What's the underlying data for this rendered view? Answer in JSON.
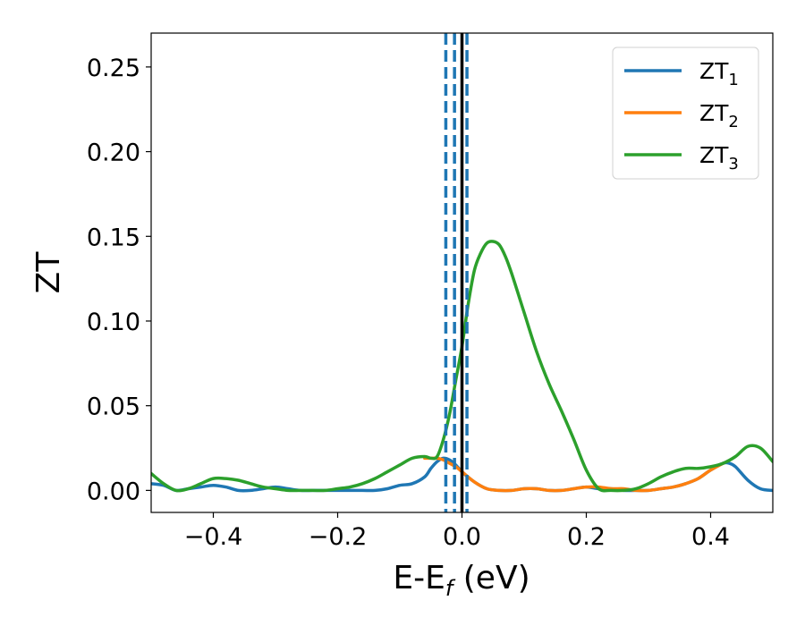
{
  "chart_data": {
    "type": "line",
    "title": "",
    "xlabel": "E-E_f (eV)",
    "xlabel_parts": {
      "base": "E-E",
      "sub": "f",
      "rest": " (eV)"
    },
    "ylabel": "ZT",
    "xlim": [
      -0.5,
      0.5
    ],
    "ylim": [
      -0.013,
      0.27
    ],
    "x_ticks": [
      -0.4,
      -0.2,
      0.0,
      0.2,
      0.4
    ],
    "x_tick_labels": [
      "−0.4",
      "−0.2",
      "0.0",
      "0.2",
      "0.4"
    ],
    "y_ticks": [
      0.0,
      0.05,
      0.1,
      0.15,
      0.2,
      0.25
    ],
    "y_tick_labels": [
      "0.00",
      "0.05",
      "0.10",
      "0.15",
      "0.20",
      "0.25"
    ],
    "grid": false,
    "legend_position": "top-right",
    "series": [
      {
        "name": "ZT1",
        "label_base": "ZT",
        "label_sub": "1",
        "color": "#1f77b4",
        "x": [
          -0.5,
          -0.48,
          -0.46,
          -0.44,
          -0.42,
          -0.4,
          -0.38,
          -0.36,
          -0.34,
          -0.32,
          -0.3,
          -0.28,
          -0.26,
          -0.24,
          -0.22,
          -0.2,
          -0.18,
          -0.16,
          -0.14,
          -0.12,
          -0.1,
          -0.08,
          -0.06,
          -0.05,
          -0.04,
          -0.03,
          -0.02,
          -0.01,
          0.0,
          0.02,
          0.04,
          0.06,
          0.08,
          0.1,
          0.12,
          0.14,
          0.16,
          0.18,
          0.2,
          0.22,
          0.24,
          0.26,
          0.28,
          0.3,
          0.32,
          0.34,
          0.36,
          0.38,
          0.4,
          0.42,
          0.43,
          0.44,
          0.46,
          0.48,
          0.5
        ],
        "y": [
          0.004,
          0.003,
          0.0,
          0.001,
          0.002,
          0.003,
          0.002,
          0.0,
          0.0,
          0.001,
          0.002,
          0.001,
          0.0,
          0.0,
          0.0,
          0.0,
          0.0,
          0.0,
          0.0,
          0.001,
          0.003,
          0.004,
          0.008,
          0.013,
          0.017,
          0.019,
          0.018,
          0.015,
          0.011,
          0.005,
          0.001,
          0.0,
          0.0,
          0.001,
          0.001,
          0.0,
          0.0,
          0.001,
          0.002,
          0.001,
          0.001,
          0.0,
          0.0,
          0.0,
          0.001,
          0.002,
          0.004,
          0.007,
          0.012,
          0.016,
          0.016,
          0.014,
          0.006,
          0.001,
          0.0
        ]
      },
      {
        "name": "ZT2",
        "label_base": "ZT",
        "label_sub": "2",
        "color": "#ff7f0e",
        "x": [
          -0.06,
          -0.05,
          -0.04,
          -0.03,
          -0.02,
          -0.01,
          0.0,
          0.02,
          0.04,
          0.06,
          0.08,
          0.1,
          0.12,
          0.14,
          0.16,
          0.18,
          0.2,
          0.22,
          0.24,
          0.26,
          0.28,
          0.3,
          0.32,
          0.34,
          0.36,
          0.38,
          0.4,
          0.42
        ],
        "y": [
          0.019,
          0.019,
          0.019,
          0.018,
          0.016,
          0.014,
          0.011,
          0.005,
          0.001,
          0.0,
          0.0,
          0.001,
          0.001,
          0.0,
          0.0,
          0.001,
          0.002,
          0.002,
          0.001,
          0.001,
          0.0,
          0.0,
          0.001,
          0.002,
          0.004,
          0.007,
          0.012,
          0.016
        ]
      },
      {
        "name": "ZT3",
        "label_base": "ZT",
        "label_sub": "3",
        "color": "#2ca02c",
        "x": [
          -0.5,
          -0.48,
          -0.46,
          -0.44,
          -0.42,
          -0.4,
          -0.38,
          -0.36,
          -0.34,
          -0.32,
          -0.3,
          -0.28,
          -0.26,
          -0.24,
          -0.22,
          -0.2,
          -0.18,
          -0.16,
          -0.14,
          -0.12,
          -0.1,
          -0.08,
          -0.06,
          -0.05,
          -0.04,
          -0.03,
          -0.02,
          -0.01,
          0.0,
          0.01,
          0.02,
          0.03,
          0.04,
          0.05,
          0.06,
          0.07,
          0.08,
          0.1,
          0.12,
          0.14,
          0.16,
          0.18,
          0.2,
          0.22,
          0.24,
          0.26,
          0.28,
          0.3,
          0.32,
          0.34,
          0.36,
          0.38,
          0.4,
          0.42,
          0.44,
          0.46,
          0.48,
          0.5
        ],
        "y": [
          0.01,
          0.004,
          0.0,
          0.001,
          0.004,
          0.007,
          0.007,
          0.006,
          0.004,
          0.002,
          0.001,
          0.0,
          0.0,
          0.0,
          0.0,
          0.001,
          0.002,
          0.004,
          0.007,
          0.011,
          0.015,
          0.019,
          0.02,
          0.019,
          0.02,
          0.03,
          0.045,
          0.065,
          0.085,
          0.11,
          0.13,
          0.14,
          0.146,
          0.147,
          0.145,
          0.138,
          0.128,
          0.105,
          0.082,
          0.063,
          0.047,
          0.03,
          0.012,
          0.001,
          0.0,
          0.0,
          0.001,
          0.004,
          0.008,
          0.011,
          0.013,
          0.013,
          0.014,
          0.016,
          0.02,
          0.026,
          0.025,
          0.017
        ]
      }
    ],
    "vertical_lines": [
      {
        "x": -0.026,
        "style": "dashed",
        "color": "#1f77b4"
      },
      {
        "x": -0.012,
        "style": "dashed",
        "color": "#1f77b4"
      },
      {
        "x": 0.0,
        "style": "solid",
        "color": "#000000"
      },
      {
        "x": 0.008,
        "style": "dashed",
        "color": "#1f77b4"
      }
    ]
  }
}
